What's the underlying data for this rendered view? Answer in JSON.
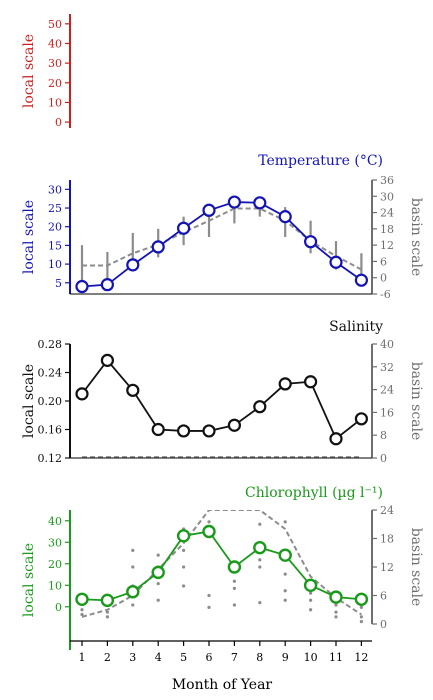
{
  "colors": {
    "top": "#cc1f1f",
    "temperature": "#1414b4",
    "salinity": "#111111",
    "chlorophyll": "#1a9a1a",
    "basin": "#8c8c8c",
    "basin_axis": "#6e6e6e"
  },
  "chart_data": [
    {
      "type": "line",
      "title": "",
      "ylabel": "local scale",
      "ylim": [
        -3,
        55
      ],
      "yticks": [
        "0",
        "10",
        "20",
        "30",
        "40",
        "50"
      ],
      "series": []
    },
    {
      "type": "line",
      "title": "Temperature (°C)",
      "ylabel": "local scale",
      "y2label": "basin scale",
      "ylim": [
        2,
        32.5
      ],
      "yticks": [
        "5",
        "10",
        "15",
        "20",
        "25",
        "30"
      ],
      "y2lim": [
        -6,
        36
      ],
      "y2ticks": [
        "-6",
        "0",
        "6",
        "12",
        "18",
        "24",
        "30",
        "36"
      ],
      "x": [
        1,
        2,
        3,
        4,
        5,
        6,
        7,
        8,
        9,
        10,
        11,
        12
      ],
      "local_values": [
        4.0,
        4.5,
        9.8,
        14.6,
        19.6,
        24.4,
        26.6,
        26.4,
        22.7,
        16.0,
        10.5,
        5.7
      ],
      "basin_mean": [
        4.5,
        4.5,
        9.0,
        12.2,
        16.7,
        21.0,
        25.5,
        25.5,
        21.0,
        13.5,
        8.0,
        3.0
      ],
      "basin_low": [
        -1.0,
        -1.5,
        4.5,
        7.5,
        12.0,
        15.0,
        20.0,
        22.5,
        15.0,
        9.0,
        3.0,
        -3.0
      ],
      "basin_high": [
        12.0,
        9.5,
        16.5,
        18.0,
        22.5,
        27.0,
        28.5,
        28.5,
        26.0,
        21.0,
        13.5,
        9.0
      ]
    },
    {
      "type": "line",
      "title": "Salinity",
      "ylabel": "local scale",
      "y2label": "basin scale",
      "ylim": [
        0.12,
        0.28
      ],
      "yticks": [
        "0.12",
        "0.16",
        "0.20",
        "0.24",
        "0.28"
      ],
      "y2lim": [
        0,
        40
      ],
      "y2ticks": [
        "0",
        "8",
        "16",
        "24",
        "32",
        "40"
      ],
      "x": [
        1,
        2,
        3,
        4,
        5,
        6,
        7,
        8,
        9,
        10,
        11,
        12
      ],
      "local_values": [
        0.21,
        0.257,
        0.215,
        0.16,
        0.158,
        0.158,
        0.166,
        0.192,
        0.224,
        0.227,
        0.147,
        0.175
      ],
      "basin_mean": [
        0.3,
        0.3,
        0.3,
        0.3,
        0.3,
        0.3,
        0.3,
        0.3,
        0.3,
        0.3,
        0.3,
        0.3
      ]
    },
    {
      "type": "line",
      "title": "Chlorophyll (µg l⁻¹)",
      "ylabel": "local scale",
      "y2label": "basin scale",
      "ylim": [
        -8,
        45
      ],
      "yticks": [
        "0",
        "10",
        "20",
        "30",
        "40"
      ],
      "y2lim": [
        0,
        24
      ],
      "y2ticks": [
        "0",
        "6",
        "12",
        "18",
        "24"
      ],
      "x": [
        1,
        2,
        3,
        4,
        5,
        6,
        7,
        8,
        9,
        10,
        11,
        12
      ],
      "local_values": [
        3.5,
        3.0,
        7.0,
        16.0,
        33.0,
        35.0,
        18.5,
        27.5,
        24.0,
        10.0,
        4.5,
        3.5
      ],
      "basin_mean": [
        1.5,
        3.0,
        6.0,
        11.5,
        17.0,
        24.0,
        24.0,
        24.0,
        20.0,
        10.0,
        5.5,
        2.0
      ],
      "basin_points": [
        [
          1,
          2.0
        ],
        [
          1,
          3.0
        ],
        [
          1,
          4.5
        ],
        [
          2,
          1.5
        ],
        [
          2,
          2.5
        ],
        [
          2,
          4.0
        ],
        [
          3,
          4.0
        ],
        [
          3,
          6.0
        ],
        [
          3,
          8.0
        ],
        [
          3,
          12.0
        ],
        [
          3,
          15.5
        ],
        [
          4,
          5.0
        ],
        [
          4,
          8.5
        ],
        [
          4,
          12.0
        ],
        [
          4,
          14.5
        ],
        [
          5,
          8.0
        ],
        [
          5,
          12.0
        ],
        [
          5,
          15.5
        ],
        [
          5,
          20.0
        ],
        [
          6,
          3.5
        ],
        [
          6,
          6.0
        ],
        [
          6,
          19.5
        ],
        [
          6,
          21.5
        ],
        [
          7,
          4.0
        ],
        [
          7,
          7.5
        ],
        [
          7,
          9.0
        ],
        [
          7,
          11.0
        ],
        [
          7,
          13.0
        ],
        [
          8,
          4.5
        ],
        [
          8,
          12.0
        ],
        [
          8,
          13.5
        ],
        [
          8,
          16.0
        ],
        [
          8,
          21.0
        ],
        [
          9,
          5.0
        ],
        [
          9,
          7.0
        ],
        [
          9,
          10.5
        ],
        [
          9,
          15.5
        ],
        [
          9,
          21.5
        ],
        [
          10,
          3.0
        ],
        [
          10,
          5.0
        ],
        [
          10,
          6.5
        ],
        [
          10,
          8.5
        ],
        [
          11,
          1.5
        ],
        [
          11,
          2.5
        ],
        [
          11,
          4.0
        ],
        [
          12,
          0.5
        ],
        [
          12,
          1.5
        ],
        [
          12,
          3.5
        ]
      ]
    }
  ],
  "xaxis": {
    "label": "Month of Year",
    "ticks": [
      "1",
      "2",
      "3",
      "4",
      "5",
      "6",
      "7",
      "8",
      "9",
      "10",
      "11",
      "12"
    ]
  }
}
